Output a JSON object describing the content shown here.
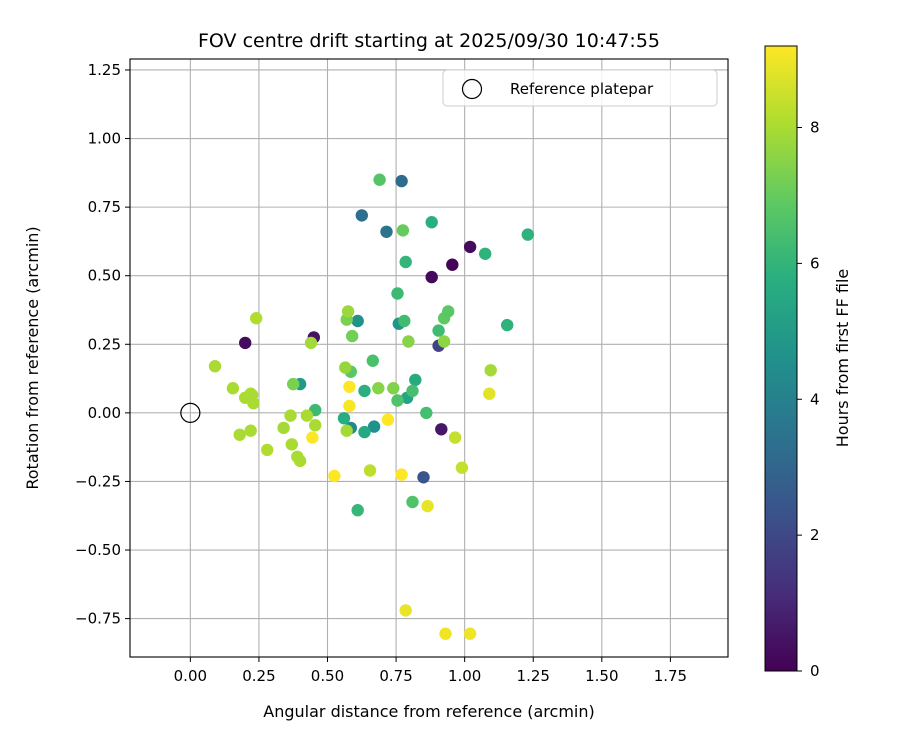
{
  "chart_data": {
    "type": "scatter",
    "title": "FOV centre drift starting at 2025/09/30 10:47:55",
    "xlabel": "Angular distance from reference (arcmin)",
    "ylabel": "Rotation from reference (arcmin)",
    "xlim": [
      -0.22,
      1.96
    ],
    "ylim": [
      -0.89,
      1.29
    ],
    "xticks": [
      0.0,
      0.25,
      0.5,
      0.75,
      1.0,
      1.25,
      1.5,
      1.75
    ],
    "xtick_labels": [
      "0.00",
      "0.25",
      "0.50",
      "0.75",
      "1.00",
      "1.25",
      "1.50",
      "1.75"
    ],
    "yticks": [
      -0.75,
      -0.5,
      -0.25,
      0.0,
      0.25,
      0.5,
      0.75,
      1.0,
      1.25
    ],
    "ytick_labels": [
      "−0.75",
      "−0.50",
      "−0.25",
      "0.00",
      "0.25",
      "0.50",
      "0.75",
      "1.00",
      "1.25"
    ],
    "grid": true,
    "legend": {
      "placement": "top-right",
      "entries": [
        "Reference platepar"
      ]
    },
    "reference_point": {
      "x": 0.0,
      "y": 0.0,
      "label": "Reference platepar"
    },
    "colorbar": {
      "label": "Hours from first FF file",
      "min": 0,
      "max": 9.2,
      "ticks": [
        0,
        2,
        4,
        6,
        8
      ],
      "tick_labels": [
        "0",
        "2",
        "4",
        "6",
        "8"
      ],
      "colormap": "viridis"
    },
    "points": [
      {
        "x": 0.2,
        "y": 0.255,
        "c": 0.3
      },
      {
        "x": 0.45,
        "y": 0.275,
        "c": 0.5
      },
      {
        "x": 0.88,
        "y": 0.495,
        "c": 0.2
      },
      {
        "x": 0.955,
        "y": 0.54,
        "c": 0.1
      },
      {
        "x": 1.02,
        "y": 0.605,
        "c": 0.3
      },
      {
        "x": 0.915,
        "y": -0.06,
        "c": 0.6
      },
      {
        "x": 0.905,
        "y": 0.245,
        "c": 1.8
      },
      {
        "x": 0.85,
        "y": -0.235,
        "c": 2.4
      },
      {
        "x": 0.77,
        "y": 0.845,
        "c": 3.2
      },
      {
        "x": 0.625,
        "y": 0.72,
        "c": 3.3
      },
      {
        "x": 0.715,
        "y": 0.66,
        "c": 3.5
      },
      {
        "x": 0.61,
        "y": 0.335,
        "c": 4.6
      },
      {
        "x": 0.76,
        "y": 0.325,
        "c": 4.7
      },
      {
        "x": 0.585,
        "y": -0.055,
        "c": 4.3
      },
      {
        "x": 0.67,
        "y": -0.05,
        "c": 4.6
      },
      {
        "x": 0.4,
        "y": 0.105,
        "c": 4.9
      },
      {
        "x": 0.79,
        "y": 0.055,
        "c": 5.3
      },
      {
        "x": 0.82,
        "y": 0.12,
        "c": 5.6
      },
      {
        "x": 0.635,
        "y": -0.07,
        "c": 5.5
      },
      {
        "x": 0.56,
        "y": -0.02,
        "c": 5.7
      },
      {
        "x": 0.635,
        "y": 0.08,
        "c": 5.8
      },
      {
        "x": 0.785,
        "y": 0.55,
        "c": 6.0
      },
      {
        "x": 0.88,
        "y": 0.695,
        "c": 5.8
      },
      {
        "x": 1.075,
        "y": 0.58,
        "c": 5.9
      },
      {
        "x": 1.23,
        "y": 0.65,
        "c": 5.9
      },
      {
        "x": 1.155,
        "y": 0.32,
        "c": 5.9
      },
      {
        "x": 0.61,
        "y": -0.355,
        "c": 6.1
      },
      {
        "x": 0.455,
        "y": 0.01,
        "c": 6.2
      },
      {
        "x": 0.755,
        "y": 0.435,
        "c": 6.2
      },
      {
        "x": 0.78,
        "y": 0.335,
        "c": 6.3
      },
      {
        "x": 0.905,
        "y": 0.3,
        "c": 6.3
      },
      {
        "x": 0.86,
        "y": 0.0,
        "c": 6.4
      },
      {
        "x": 0.81,
        "y": 0.08,
        "c": 6.4
      },
      {
        "x": 0.665,
        "y": 0.19,
        "c": 6.5
      },
      {
        "x": 0.755,
        "y": 0.045,
        "c": 6.6
      },
      {
        "x": 0.81,
        "y": -0.325,
        "c": 6.6
      },
      {
        "x": 0.69,
        "y": 0.85,
        "c": 6.7
      },
      {
        "x": 0.585,
        "y": 0.15,
        "c": 6.8
      },
      {
        "x": 0.925,
        "y": 0.345,
        "c": 6.9
      },
      {
        "x": 0.94,
        "y": 0.37,
        "c": 6.8
      },
      {
        "x": 0.775,
        "y": 0.665,
        "c": 7.0
      },
      {
        "x": 0.375,
        "y": 0.105,
        "c": 7.3
      },
      {
        "x": 0.59,
        "y": 0.28,
        "c": 7.2
      },
      {
        "x": 0.57,
        "y": 0.34,
        "c": 7.3
      },
      {
        "x": 0.74,
        "y": 0.09,
        "c": 7.4
      },
      {
        "x": 0.795,
        "y": 0.26,
        "c": 7.5
      },
      {
        "x": 0.685,
        "y": 0.09,
        "c": 7.5
      },
      {
        "x": 0.925,
        "y": 0.26,
        "c": 7.6
      },
      {
        "x": 0.565,
        "y": 0.165,
        "c": 7.7
      },
      {
        "x": 0.575,
        "y": 0.37,
        "c": 7.8
      },
      {
        "x": 0.44,
        "y": 0.255,
        "c": 7.9
      },
      {
        "x": 0.57,
        "y": -0.065,
        "c": 7.9
      },
      {
        "x": 1.095,
        "y": 0.155,
        "c": 7.9
      },
      {
        "x": 0.34,
        "y": -0.055,
        "c": 7.9
      },
      {
        "x": 0.365,
        "y": -0.01,
        "c": 8.0
      },
      {
        "x": 0.425,
        "y": -0.01,
        "c": 8.0
      },
      {
        "x": 0.455,
        "y": -0.045,
        "c": 8.0
      },
      {
        "x": 0.37,
        "y": -0.115,
        "c": 8.0
      },
      {
        "x": 0.39,
        "y": -0.16,
        "c": 8.0
      },
      {
        "x": 0.4,
        "y": -0.175,
        "c": 8.0
      },
      {
        "x": 0.09,
        "y": 0.17,
        "c": 8.0
      },
      {
        "x": 0.155,
        "y": 0.09,
        "c": 8.0
      },
      {
        "x": 0.22,
        "y": 0.07,
        "c": 8.0
      },
      {
        "x": 0.225,
        "y": 0.065,
        "c": 8.0
      },
      {
        "x": 0.2,
        "y": 0.055,
        "c": 8.0
      },
      {
        "x": 0.23,
        "y": 0.035,
        "c": 8.0
      },
      {
        "x": 0.18,
        "y": -0.08,
        "c": 8.0
      },
      {
        "x": 0.22,
        "y": -0.065,
        "c": 8.0
      },
      {
        "x": 0.28,
        "y": -0.135,
        "c": 8.1
      },
      {
        "x": 0.24,
        "y": 0.345,
        "c": 8.1
      },
      {
        "x": 0.655,
        "y": -0.21,
        "c": 8.3
      },
      {
        "x": 0.965,
        "y": -0.09,
        "c": 8.4
      },
      {
        "x": 0.99,
        "y": -0.2,
        "c": 8.4
      },
      {
        "x": 1.09,
        "y": 0.07,
        "c": 8.8
      },
      {
        "x": 0.865,
        "y": -0.34,
        "c": 8.9
      },
      {
        "x": 0.785,
        "y": -0.72,
        "c": 8.9
      },
      {
        "x": 0.93,
        "y": -0.805,
        "c": 9.0
      },
      {
        "x": 1.02,
        "y": -0.805,
        "c": 9.0
      },
      {
        "x": 0.58,
        "y": 0.025,
        "c": 9.1
      },
      {
        "x": 0.58,
        "y": 0.095,
        "c": 9.2
      },
      {
        "x": 0.445,
        "y": -0.09,
        "c": 9.2
      },
      {
        "x": 0.525,
        "y": -0.23,
        "c": 9.2
      },
      {
        "x": 0.72,
        "y": -0.025,
        "c": 9.2
      },
      {
        "x": 0.77,
        "y": -0.225,
        "c": 9.2
      }
    ]
  }
}
